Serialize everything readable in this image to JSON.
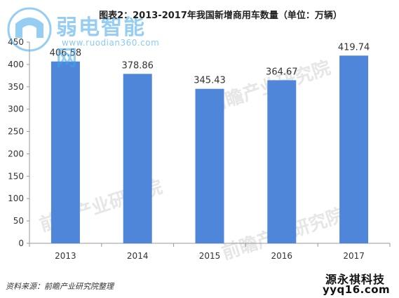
{
  "chart_data": {
    "type": "bar",
    "title": "图表2：2013-2017年我国新增商用车数量（单位：万辆）",
    "categories": [
      "2013",
      "2014",
      "2015",
      "2016",
      "2017"
    ],
    "values": [
      406.58,
      378.86,
      345.43,
      364.67,
      419.74
    ],
    "value_labels": [
      "406.58",
      "378.86",
      "345.43",
      "364.67",
      "419.74"
    ],
    "ylim": [
      0,
      450
    ],
    "yticks": [
      "0",
      "50",
      "100",
      "150",
      "200",
      "250",
      "300",
      "350",
      "400",
      "450"
    ],
    "xlabel": "",
    "ylabel": "",
    "grid": false,
    "bar_color": "#4f86d9"
  },
  "watermark": {
    "name": "弱电智能网",
    "url": "www.ruodian360.com",
    "color": "#3fa6ea"
  },
  "source": "资料来源：前瞻产业研究院整理",
  "stamp": {
    "line1": "源永祺科技",
    "line2": "yyq16.com"
  }
}
